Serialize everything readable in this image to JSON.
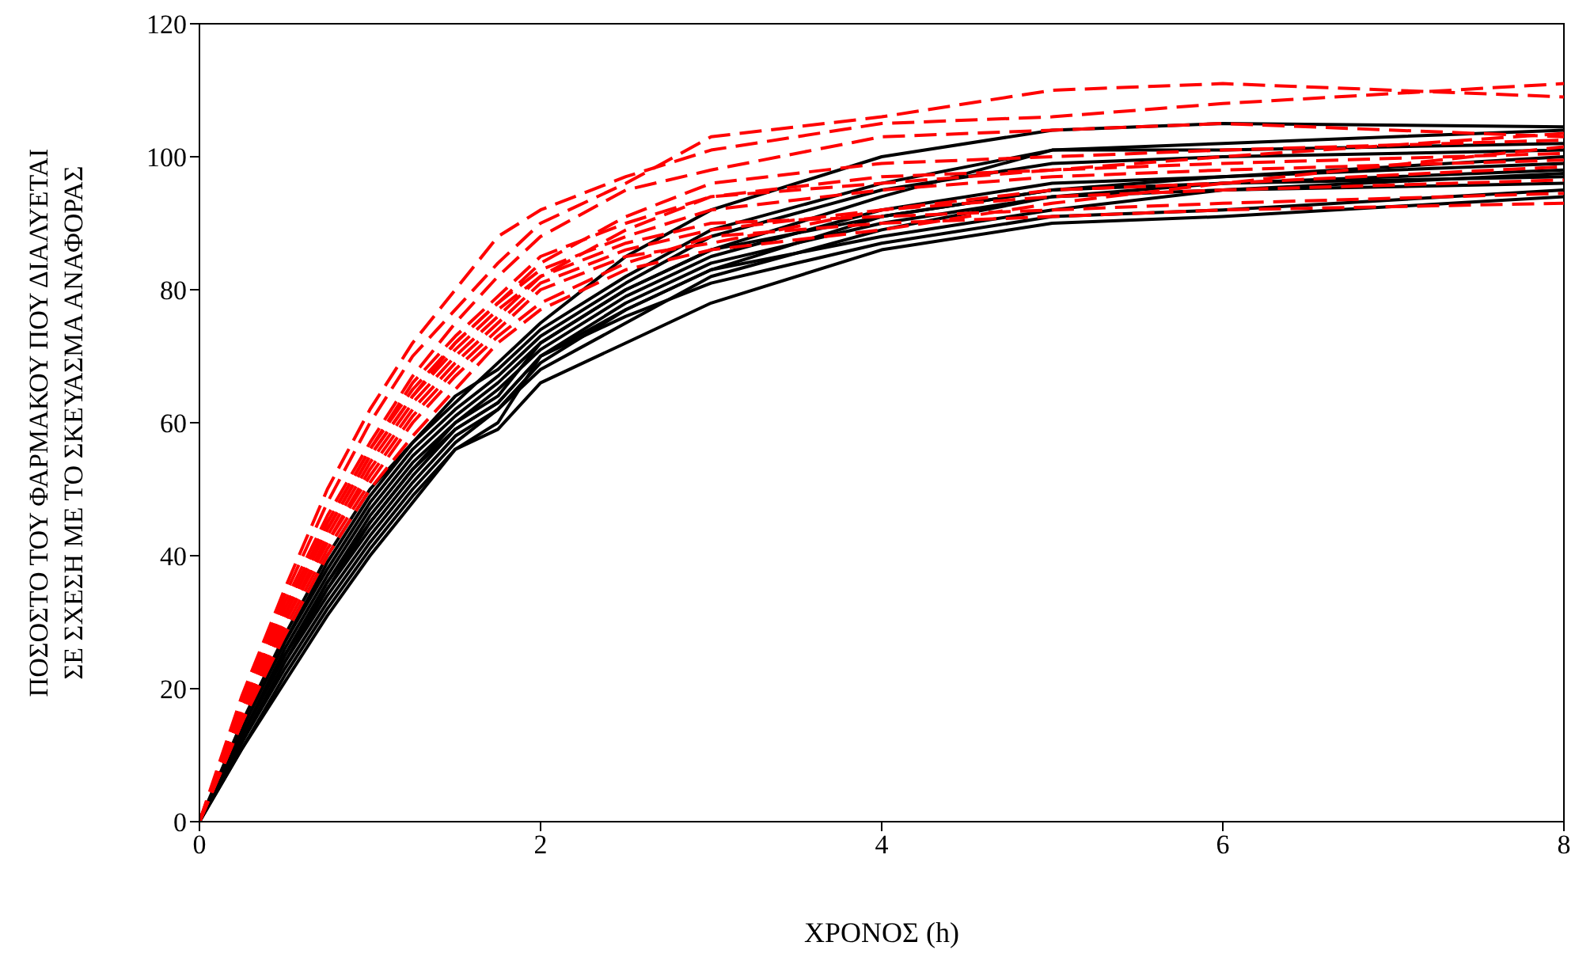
{
  "chart_data": {
    "type": "line",
    "xlabel": "ΧΡΟΝΟΣ (h)",
    "ylabel": "ΠΟΣΟΣΤΟ ΤΟΥ ΦΑΡΜΑΚΟΥ ΠΟΥ ΔΙΑΛΥΕΤΑΙ\nΣΕ ΣΧΕΣΗ ΜΕ ΤΟ ΣΚΕΥΑΣΜΑ ΑΝΑΦΟΡΑΣ",
    "x": [
      0,
      0.25,
      0.5,
      0.75,
      1,
      1.25,
      1.5,
      1.75,
      2,
      2.5,
      3,
      4,
      5,
      6,
      8
    ],
    "xlim": [
      0,
      8
    ],
    "xticks": [
      0,
      2,
      4,
      6,
      8
    ],
    "ylim": [
      0,
      120
    ],
    "yticks": [
      0,
      20,
      40,
      60,
      80,
      100,
      120
    ],
    "grid": false,
    "series": [
      {
        "color": "#000000",
        "line_style": "solid",
        "values": [
          0,
          13,
          25,
          36,
          45,
          53,
          60,
          64,
          72,
          80,
          86,
          94,
          101,
          102,
          104
        ]
      },
      {
        "color": "#000000",
        "line_style": "solid",
        "values": [
          0,
          12,
          24,
          34,
          43,
          51,
          58,
          62,
          69,
          77,
          83,
          91,
          95,
          97,
          100
        ]
      },
      {
        "color": "#000000",
        "line_style": "solid",
        "values": [
          0,
          11,
          22,
          32,
          41,
          49,
          56,
          59,
          66,
          72,
          78,
          86,
          90,
          91,
          94
        ]
      },
      {
        "color": "#000000",
        "line_style": "solid",
        "values": [
          0,
          14,
          27,
          38,
          48,
          56,
          62,
          67,
          73,
          81,
          88,
          95,
          99,
          100,
          101
        ]
      },
      {
        "color": "#000000",
        "line_style": "solid",
        "values": [
          0,
          13,
          25,
          36,
          46,
          54,
          60,
          65,
          71,
          79,
          85,
          92,
          96,
          97,
          99
        ]
      },
      {
        "color": "#000000",
        "line_style": "solid",
        "values": [
          0,
          12,
          23,
          33,
          42,
          50,
          57,
          62,
          68,
          75,
          82,
          89,
          94,
          96,
          98
        ]
      },
      {
        "color": "#000000",
        "line_style": "solid",
        "values": [
          0,
          15,
          28,
          40,
          50,
          57,
          63,
          69,
          75,
          85,
          92,
          100,
          104,
          105,
          104.5
        ]
      },
      {
        "color": "#000000",
        "line_style": "solid",
        "values": [
          0,
          13,
          26,
          37,
          47,
          55,
          61,
          66,
          72,
          80,
          86,
          91,
          95,
          96,
          97
        ]
      },
      {
        "color": "#000000",
        "line_style": "solid",
        "values": [
          0,
          11,
          21,
          31,
          40,
          48,
          56,
          60,
          70,
          76,
          81,
          87,
          91,
          92,
          95
        ]
      },
      {
        "color": "#000000",
        "line_style": "solid",
        "values": [
          0,
          14,
          27,
          39,
          49,
          57,
          64,
          68,
          74,
          82,
          89,
          96,
          101,
          101,
          102
        ]
      },
      {
        "color": "#000000",
        "line_style": "solid",
        "values": [
          0,
          12,
          24,
          35,
          44,
          52,
          59,
          63,
          70,
          78,
          84,
          90,
          94,
          95,
          96
        ]
      },
      {
        "color": "#000000",
        "line_style": "solid",
        "values": [
          0,
          13,
          25,
          35,
          45,
          53,
          59,
          63,
          70,
          77,
          83,
          88,
          92,
          95,
          97.5
        ]
      },
      {
        "color": "#ff0000",
        "line_style": "dashed",
        "values": [
          0,
          18,
          34,
          48,
          60,
          70,
          77,
          84,
          90,
          96,
          103,
          106,
          110,
          111,
          109
        ]
      },
      {
        "color": "#ff0000",
        "line_style": "dashed",
        "values": [
          0,
          17,
          33,
          46,
          57,
          67,
          75,
          82,
          88,
          95,
          98,
          103,
          104,
          105,
          103
        ]
      },
      {
        "color": "#ff0000",
        "line_style": "dashed",
        "values": [
          0,
          16,
          31,
          44,
          55,
          64,
          72,
          78,
          84,
          91,
          96,
          99,
          100,
          101,
          102.5
        ]
      },
      {
        "color": "#ff0000",
        "line_style": "dashed",
        "values": [
          0,
          19,
          35,
          50,
          62,
          72,
          80,
          88,
          92,
          97,
          101,
          105,
          106,
          108,
          111
        ]
      },
      {
        "color": "#ff0000",
        "line_style": "dashed",
        "values": [
          0,
          15,
          30,
          42,
          53,
          62,
          69,
          75,
          81,
          86,
          89,
          92,
          94,
          95,
          96.5
        ]
      },
      {
        "color": "#ff0000",
        "line_style": "dashed",
        "values": [
          0,
          16,
          30,
          43,
          54,
          63,
          70,
          76,
          82,
          87,
          90,
          91,
          92,
          93,
          94.5
        ]
      },
      {
        "color": "#ff0000",
        "line_style": "dashed",
        "values": [
          0,
          17,
          32,
          45,
          56,
          65,
          72,
          78,
          83,
          88,
          92,
          95,
          97,
          98,
          99.5
        ]
      },
      {
        "color": "#ff0000",
        "line_style": "dashed",
        "values": [
          0,
          15,
          29,
          41,
          51,
          60,
          67,
          73,
          78,
          84,
          88,
          90,
          91,
          92,
          93
        ]
      },
      {
        "color": "#ff0000",
        "line_style": "dashed",
        "values": [
          0,
          16,
          31,
          44,
          55,
          64,
          71,
          77,
          82,
          89,
          94,
          97,
          98,
          100,
          103.5
        ]
      },
      {
        "color": "#ff0000",
        "line_style": "dashed",
        "values": [
          0,
          17,
          32,
          45,
          56,
          66,
          73,
          79,
          85,
          90,
          94,
          96,
          98,
          99,
          100.5
        ]
      },
      {
        "color": "#ff0000",
        "line_style": "dashed",
        "values": [
          0,
          16,
          30,
          42,
          52,
          61,
          68,
          74,
          80,
          85,
          87,
          92,
          95,
          96,
          98.5
        ]
      },
      {
        "color": "#ff0000",
        "line_style": "dashed",
        "values": [
          0,
          15,
          28,
          40,
          50,
          58,
          65,
          72,
          77,
          83,
          86,
          89,
          93,
          96,
          101.5
        ]
      }
    ]
  }
}
